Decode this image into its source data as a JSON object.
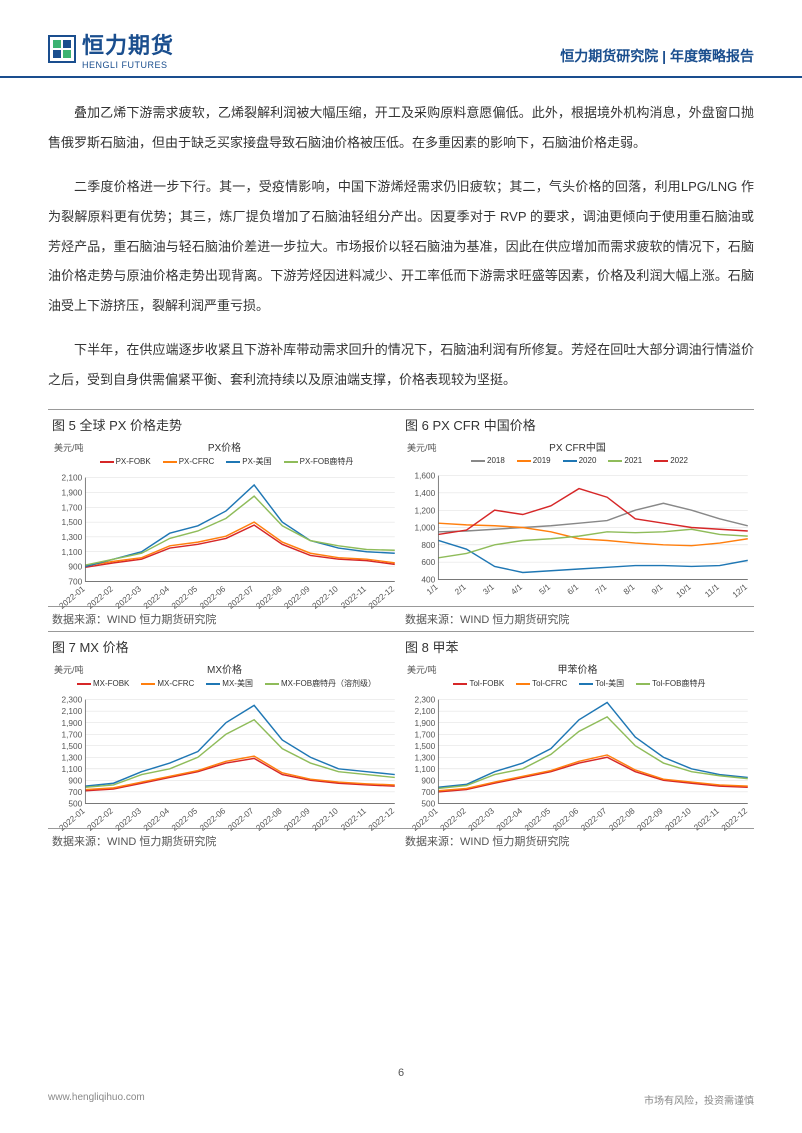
{
  "header": {
    "logo_cn": "恒力期货",
    "logo_en": "HENGLI FUTURES",
    "right": "恒力期货研究院 | 年度策略报告"
  },
  "paragraphs": {
    "p1": "叠加乙烯下游需求疲软，乙烯裂解利润被大幅压缩，开工及采购原料意愿偏低。此外，根据境外机构消息，外盘窗口抛售俄罗斯石脑油，但由于缺乏买家接盘导致石脑油价格被压低。在多重因素的影响下，石脑油价格走弱。",
    "p2": "二季度价格进一步下行。其一，受疫情影响，中国下游烯烃需求仍旧疲软；其二，气头价格的回落，利用LPG/LNG 作为裂解原料更有优势；其三，炼厂提负增加了石脑油轻组分产出。因夏季对于 RVP 的要求，调油更倾向于使用重石脑油或芳烃产品，重石脑油与轻石脑油价差进一步拉大。市场报价以轻石脑油为基准，因此在供应增加而需求疲软的情况下，石脑油价格走势与原油价格走势出现背离。下游芳烃因进料减少、开工率低而下游需求旺盛等因素，价格及利润大幅上涨。石脑油受上下游挤压，裂解利润严重亏损。",
    "p3": "下半年，在供应端逐步收紧且下游补库带动需求回升的情况下，石脑油利润有所修复。芳烃在回吐大部分调油行情溢价之后，受到自身供需偏紧平衡、套利流持续以及原油端支撑，价格表现较为坚挺。"
  },
  "charts": {
    "titles": {
      "c5": "图 5 全球 PX 价格走势",
      "c6": "图 6 PX CFR 中国价格",
      "c7": "图 7 MX 价格",
      "c8": "图 8 甲苯"
    },
    "source": "数据来源：WIND 恒力期货研究院",
    "c5": {
      "ctitle": "PX价格",
      "ytitle": "美元/吨",
      "series": [
        "PX-FOBK",
        "PX-CFRC",
        "PX-美国",
        "PX-FOB鹿特丹"
      ],
      "colors": [
        "#d62728",
        "#ff7f0e",
        "#1f77b4",
        "#8fbc5a"
      ],
      "ylim": [
        700,
        2100
      ],
      "yticks": [
        700,
        900,
        1100,
        1300,
        1500,
        1700,
        1900,
        2100
      ],
      "xlabels": [
        "2022-01",
        "2022-02",
        "2022-03",
        "2022-04",
        "2022-05",
        "2022-06",
        "2022-07",
        "2022-08",
        "2022-09",
        "2022-10",
        "2022-11",
        "2022-12"
      ],
      "data": {
        "PX-FOBK": [
          890,
          950,
          1000,
          1150,
          1200,
          1280,
          1460,
          1200,
          1050,
          1000,
          980,
          930
        ],
        "PX-CFRC": [
          910,
          970,
          1020,
          1180,
          1230,
          1310,
          1500,
          1230,
          1080,
          1020,
          1000,
          950
        ],
        "PX-美国": [
          900,
          1000,
          1100,
          1350,
          1450,
          1650,
          2000,
          1500,
          1250,
          1150,
          1100,
          1080
        ],
        "PX-FOB鹿特丹": [
          920,
          1000,
          1080,
          1280,
          1380,
          1550,
          1850,
          1450,
          1250,
          1180,
          1130,
          1120
        ]
      }
    },
    "c6": {
      "ctitle": "PX CFR中国",
      "ytitle": "美元/吨",
      "series": [
        "2018",
        "2019",
        "2020",
        "2021",
        "2022"
      ],
      "colors": [
        "#888888",
        "#ff7f0e",
        "#1f77b4",
        "#8fbc5a",
        "#d62728"
      ],
      "ylim": [
        400,
        1600
      ],
      "yticks": [
        400,
        600,
        800,
        1000,
        1200,
        1400,
        1600
      ],
      "xlabels": [
        "1/1",
        "2/1",
        "3/1",
        "4/1",
        "5/1",
        "6/1",
        "7/1",
        "8/1",
        "9/1",
        "10/1",
        "11/1",
        "12/1"
      ],
      "data": {
        "2018": [
          950,
          960,
          980,
          1000,
          1020,
          1050,
          1080,
          1200,
          1280,
          1200,
          1100,
          1020
        ],
        "2019": [
          1050,
          1030,
          1020,
          1000,
          950,
          870,
          850,
          820,
          800,
          790,
          820,
          870
        ],
        "2020": [
          850,
          750,
          550,
          480,
          500,
          520,
          540,
          560,
          560,
          550,
          560,
          620
        ],
        "2021": [
          650,
          700,
          800,
          850,
          870,
          900,
          950,
          940,
          950,
          980,
          920,
          900
        ],
        "2022": [
          920,
          970,
          1200,
          1150,
          1250,
          1450,
          1350,
          1100,
          1050,
          1000,
          980,
          960
        ]
      }
    },
    "c7": {
      "ctitle": "MX价格",
      "ytitle": "美元/吨",
      "series": [
        "MX-FOBK",
        "MX-CFRC",
        "MX-美国",
        "MX-FOB鹿特丹（溶剂级）"
      ],
      "colors": [
        "#d62728",
        "#ff7f0e",
        "#1f77b4",
        "#8fbc5a"
      ],
      "ylim": [
        500,
        2300
      ],
      "yticks": [
        500,
        700,
        900,
        1100,
        1300,
        1500,
        1700,
        1900,
        2100,
        2300
      ],
      "xlabels": [
        "2022-01",
        "2022-02",
        "2022-03",
        "2022-04",
        "2022-05",
        "2022-06",
        "2022-07",
        "2022-08",
        "2022-09",
        "2022-10",
        "2022-11",
        "2022-12"
      ],
      "data": {
        "MX-FOBK": [
          720,
          750,
          850,
          950,
          1050,
          1200,
          1280,
          1000,
          900,
          850,
          820,
          800
        ],
        "MX-CFRC": [
          740,
          770,
          870,
          970,
          1070,
          1230,
          1320,
          1030,
          920,
          870,
          840,
          820
        ],
        "MX-美国": [
          800,
          850,
          1050,
          1200,
          1400,
          1900,
          2200,
          1600,
          1300,
          1100,
          1050,
          1000
        ],
        "MX-FOB鹿特丹（溶剂级）": [
          780,
          820,
          1000,
          1100,
          1300,
          1700,
          1950,
          1450,
          1200,
          1050,
          1000,
          950
        ]
      }
    },
    "c8": {
      "ctitle": "甲苯价格",
      "ytitle": "美元/吨",
      "series": [
        "Tol-FOBK",
        "Tol-CFRC",
        "Tol-美国",
        "Tol-FOB鹿特丹"
      ],
      "colors": [
        "#d62728",
        "#ff7f0e",
        "#1f77b4",
        "#8fbc5a"
      ],
      "ylim": [
        500,
        2300
      ],
      "yticks": [
        500,
        700,
        900,
        1100,
        1300,
        1500,
        1700,
        1900,
        2100,
        2300
      ],
      "xlabels": [
        "2022-01",
        "2022-02",
        "2022-03",
        "2022-04",
        "2022-05",
        "2022-06",
        "2022-07",
        "2022-08",
        "2022-09",
        "2022-10",
        "2022-11",
        "2022-12"
      ],
      "data": {
        "Tol-FOBK": [
          700,
          740,
          850,
          950,
          1050,
          1200,
          1300,
          1050,
          900,
          850,
          800,
          780
        ],
        "Tol-CFRC": [
          720,
          760,
          870,
          970,
          1070,
          1230,
          1340,
          1080,
          920,
          870,
          820,
          800
        ],
        "Tol-美国": [
          780,
          830,
          1050,
          1200,
          1450,
          1950,
          2250,
          1650,
          1300,
          1100,
          1000,
          950
        ],
        "Tol-FOB鹿特丹": [
          760,
          810,
          1000,
          1100,
          1350,
          1750,
          2000,
          1500,
          1200,
          1050,
          980,
          930
        ]
      }
    }
  },
  "footer": {
    "url": "www.hengliqihuo.com",
    "risk": "市场有风险，投资需谨慎",
    "page": "6"
  }
}
